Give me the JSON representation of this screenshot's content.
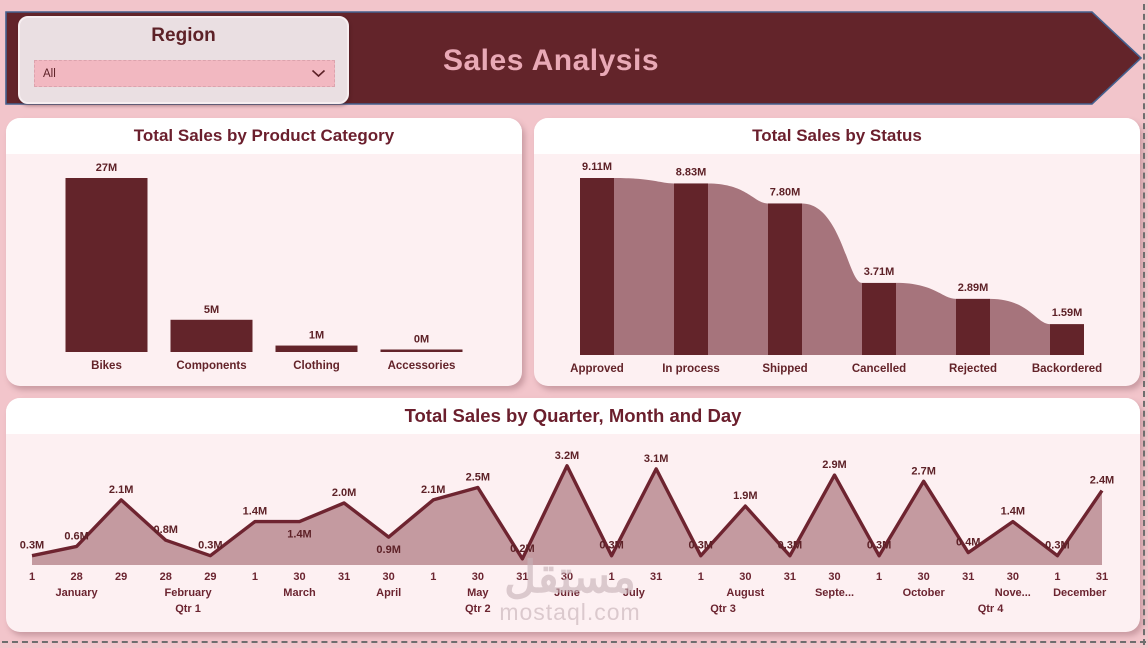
{
  "colors": {
    "page_bg": "#f2c5cb",
    "banner_bg": "#63242a",
    "banner_border": "#44608e",
    "banner_title_text": "#e9a9b6",
    "card_bg": "#fdf0f2",
    "card_title_bg": "#ffffff",
    "bar": "#63242a",
    "funnel_connector": "#a6747c",
    "area_fill": "#c49aa0",
    "line": "#6e2430",
    "slicer_card_bg": "#eadfe2",
    "dropdown_bg": "#f2b8c1",
    "text_maroon": "#5d2127"
  },
  "header": {
    "title": "Sales Analysis",
    "slicer": {
      "label": "Region",
      "selected_value": "All",
      "chevron_icon": "chevron-down"
    }
  },
  "watermark": {
    "arabic": "مستقل",
    "latin": "mostaql.com"
  },
  "chart_data": [
    {
      "id": "total-sales-by-product-category",
      "type": "bar",
      "title": "Total Sales by Product Category",
      "categories": [
        "Bikes",
        "Components",
        "Clothing",
        "Accessories"
      ],
      "values": [
        27,
        5,
        1,
        0
      ],
      "value_labels": [
        "27M",
        "5M",
        "1M",
        "0M"
      ],
      "unit": "M",
      "xlabel": "",
      "ylabel": "",
      "ylim": [
        0,
        27
      ],
      "grid": false,
      "legend": "none"
    },
    {
      "id": "total-sales-by-status",
      "type": "bar",
      "variant": "funnel-ribbon",
      "title": "Total Sales by Status",
      "categories": [
        "Approved",
        "In process",
        "Shipped",
        "Cancelled",
        "Rejected",
        "Backordered"
      ],
      "values": [
        9.11,
        8.83,
        7.8,
        3.71,
        2.89,
        1.59
      ],
      "value_labels": [
        "9.11M",
        "8.83M",
        "7.80M",
        "3.71M",
        "2.89M",
        "1.59M"
      ],
      "unit": "M",
      "xlabel": "",
      "ylabel": "",
      "ylim": [
        0,
        9.11
      ],
      "grid": false,
      "legend": "none"
    },
    {
      "id": "total-sales-by-quarter-month-and-day",
      "type": "area",
      "title": "Total Sales by Quarter, Month and Day",
      "unit": "M",
      "xlabel": "",
      "ylabel": "",
      "ylim": [
        0,
        3.4
      ],
      "grid": false,
      "legend": "none",
      "points": [
        {
          "day": "1",
          "month": "January",
          "quarter": "Qtr 1",
          "value": 0.3,
          "label": "0.3M"
        },
        {
          "day": "28",
          "month": "January",
          "quarter": "Qtr 1",
          "value": 0.6,
          "label": "0.6M"
        },
        {
          "day": "29",
          "month": "January",
          "quarter": "Qtr 1",
          "value": 2.1,
          "label": "2.1M"
        },
        {
          "day": "28",
          "month": "February",
          "quarter": "Qtr 1",
          "value": 0.8,
          "label": "0.8M"
        },
        {
          "day": "29",
          "month": "February",
          "quarter": "Qtr 1",
          "value": 0.3,
          "label": "0.3M"
        },
        {
          "day": "1",
          "month": "March",
          "quarter": "Qtr 1",
          "value": 1.4,
          "label": "1.4M"
        },
        {
          "day": "30",
          "month": "March",
          "quarter": "Qtr 1",
          "value": 1.4,
          "label": "1.4M",
          "label_below": true
        },
        {
          "day": "31",
          "month": "March",
          "quarter": "Qtr 1",
          "value": 2.0,
          "label": "2.0M"
        },
        {
          "day": "30",
          "month": "April",
          "quarter": "Qtr 2",
          "value": 0.9,
          "label": "0.9M",
          "label_below": true
        },
        {
          "day": "1",
          "month": "May",
          "quarter": "Qtr 2",
          "value": 2.1,
          "label": "2.1M"
        },
        {
          "day": "30",
          "month": "May",
          "quarter": "Qtr 2",
          "value": 2.5,
          "label": "2.5M"
        },
        {
          "day": "31",
          "month": "May",
          "quarter": "Qtr 2",
          "value": 0.2,
          "label": "0.2M"
        },
        {
          "day": "30",
          "month": "June",
          "quarter": "Qtr 2",
          "value": 3.2,
          "label": "3.2M"
        },
        {
          "day": "1",
          "month": "July",
          "quarter": "Qtr 3",
          "value": 0.3,
          "label": "0.3M"
        },
        {
          "day": "31",
          "month": "July",
          "quarter": "Qtr 3",
          "value": 3.1,
          "label": "3.1M"
        },
        {
          "day": "1",
          "month": "August",
          "quarter": "Qtr 3",
          "value": 0.3,
          "label": "0.3M"
        },
        {
          "day": "30",
          "month": "August",
          "quarter": "Qtr 3",
          "value": 1.9,
          "label": "1.9M"
        },
        {
          "day": "31",
          "month": "August",
          "quarter": "Qtr 3",
          "value": 0.3,
          "label": "0.3M"
        },
        {
          "day": "30",
          "month": "Septe...",
          "quarter": "Qtr 3",
          "value": 2.9,
          "label": "2.9M"
        },
        {
          "day": "1",
          "month": "October",
          "quarter": "Qtr 4",
          "value": 0.3,
          "label": "0.3M"
        },
        {
          "day": "30",
          "month": "October",
          "quarter": "Qtr 4",
          "value": 2.7,
          "label": "2.7M"
        },
        {
          "day": "31",
          "month": "October",
          "quarter": "Qtr 4",
          "value": 0.4,
          "label": "0.4M"
        },
        {
          "day": "30",
          "month": "Nove...",
          "quarter": "Qtr 4",
          "value": 1.4,
          "label": "1.4M"
        },
        {
          "day": "1",
          "month": "December",
          "quarter": "Qtr 4",
          "value": 0.3,
          "label": "0.3M"
        },
        {
          "day": "31",
          "month": "December",
          "quarter": "Qtr 4",
          "value": 2.4,
          "label": "2.4M"
        }
      ]
    }
  ]
}
